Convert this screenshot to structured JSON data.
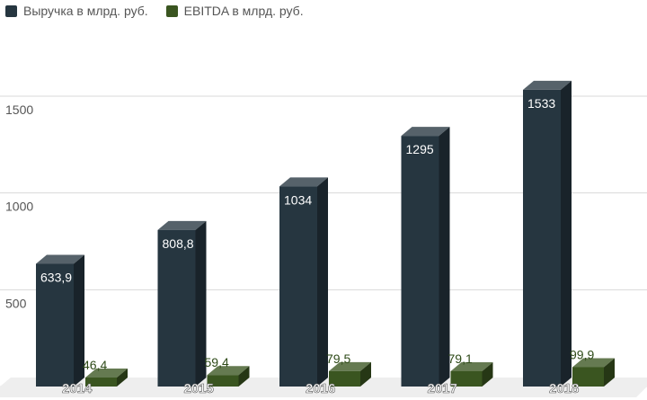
{
  "chart_data": {
    "type": "bar",
    "title": "",
    "xlabel": "",
    "ylabel": "",
    "categories": [
      "2014",
      "2015",
      "2016",
      "2017",
      "2018"
    ],
    "series": [
      {
        "name": "Выручка в млрд. руб.",
        "color": "#263640",
        "values": [
          633.9,
          808.8,
          1034,
          1295,
          1533
        ],
        "labels": [
          "633,9",
          "808,8",
          "1034",
          "1295",
          "1533"
        ]
      },
      {
        "name": "EBITDA в млрд. руб.",
        "color": "#3a5520",
        "values": [
          46.4,
          59.4,
          79.5,
          79.1,
          99.9
        ],
        "labels": [
          "46,4",
          "59,4",
          "79,5",
          "79,1",
          "99,9"
        ]
      }
    ],
    "ylim": [
      0,
      1500
    ],
    "yticks": [
      500,
      1000,
      1500
    ],
    "ytick_labels": [
      "500",
      "1000",
      "1500"
    ],
    "grid": true,
    "legend_position": "top-left",
    "bar_style": "3d"
  }
}
